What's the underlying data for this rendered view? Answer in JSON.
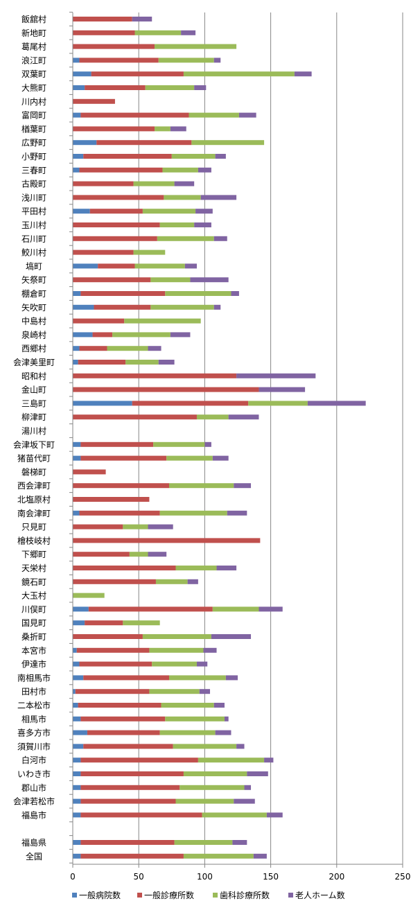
{
  "chart_data": {
    "type": "bar",
    "orientation": "horizontal",
    "stacked": true,
    "title": "",
    "xlabel": "",
    "ylabel": "",
    "xlim": [
      0,
      250
    ],
    "x_ticks": [
      0,
      50,
      100,
      150,
      200,
      250
    ],
    "grid": true,
    "legend_position": "bottom",
    "categories": [
      "飯舘村",
      "新地町",
      "葛尾村",
      "浪江町",
      "双葉町",
      "大熊町",
      "川内村",
      "富岡町",
      "楢葉町",
      "広野町",
      "小野町",
      "三春町",
      "古殿町",
      "浅川町",
      "平田村",
      "玉川村",
      "石川町",
      "鮫川村",
      "塙町",
      "矢祭町",
      "棚倉町",
      "矢吹町",
      "中島村",
      "泉崎村",
      "西郷村",
      "会津美里町",
      "昭和村",
      "金山町",
      "三島町",
      "柳津町",
      "湯川村",
      "会津坂下町",
      "猪苗代町",
      "磐梯町",
      "西会津町",
      "北塩原村",
      "南会津町",
      "只見町",
      "檜枝岐村",
      "下郷町",
      "天栄村",
      "鏡石町",
      "大玉村",
      "川俣町",
      "国見町",
      "桑折町",
      "本宮市",
      "伊達市",
      "南相馬市",
      "田村市",
      "二本松市",
      "相馬市",
      "喜多方市",
      "須賀川市",
      "白河市",
      "いわき市",
      "郡山市",
      "会津若松市",
      "福島市",
      "",
      "福島県",
      "全国"
    ],
    "series": [
      {
        "name": "一般病院数",
        "color": "#4F81BD",
        "values": [
          0,
          0,
          0,
          5,
          14,
          9,
          0,
          6,
          0,
          18,
          8,
          5,
          0,
          0,
          13,
          0,
          0,
          0,
          19,
          0,
          6,
          16,
          0,
          15,
          5,
          4,
          0,
          0,
          45,
          0,
          0,
          6,
          6,
          0,
          0,
          0,
          5,
          0,
          0,
          0,
          0,
          0,
          0,
          12,
          9,
          0,
          3,
          5,
          8,
          2,
          4,
          6,
          11,
          8,
          6,
          6,
          6,
          6,
          6,
          null,
          6,
          6
        ]
      },
      {
        "name": "一般診療所数",
        "color": "#C0504D",
        "values": [
          45,
          47,
          62,
          60,
          70,
          46,
          32,
          82,
          62,
          72,
          67,
          63,
          46,
          69,
          40,
          66,
          64,
          46,
          28,
          59,
          64,
          43,
          39,
          15,
          21,
          36,
          124,
          141,
          88,
          94,
          0,
          55,
          65,
          25,
          73,
          58,
          61,
          38,
          142,
          43,
          78,
          63,
          0,
          94,
          29,
          53,
          55,
          55,
          65,
          56,
          63,
          64,
          55,
          68,
          89,
          78,
          75,
          72,
          92,
          null,
          71,
          78
        ]
      },
      {
        "name": "歯科診療所数",
        "color": "#9BBB59",
        "values": [
          0,
          35,
          62,
          42,
          84,
          37,
          0,
          38,
          12,
          55,
          33,
          27,
          31,
          28,
          40,
          26,
          43,
          24,
          38,
          30,
          50,
          48,
          58,
          44,
          31,
          25,
          0,
          0,
          45,
          24,
          0,
          39,
          35,
          0,
          49,
          0,
          51,
          19,
          0,
          14,
          31,
          24,
          24,
          35,
          28,
          52,
          41,
          34,
          43,
          38,
          40,
          45,
          42,
          48,
          50,
          48,
          49,
          44,
          49,
          null,
          44,
          53
        ]
      },
      {
        "name": "老人ホーム数",
        "color": "#8064A2",
        "values": [
          15,
          11,
          0,
          5,
          13,
          9,
          0,
          13,
          12,
          0,
          8,
          10,
          15,
          27,
          13,
          13,
          10,
          0,
          9,
          29,
          6,
          5,
          0,
          15,
          10,
          12,
          60,
          35,
          44,
          23,
          0,
          5,
          12,
          0,
          13,
          0,
          15,
          19,
          0,
          14,
          15,
          8,
          0,
          18,
          0,
          30,
          10,
          8,
          9,
          8,
          8,
          3,
          12,
          6,
          7,
          16,
          5,
          16,
          12,
          null,
          11,
          10
        ]
      }
    ]
  }
}
